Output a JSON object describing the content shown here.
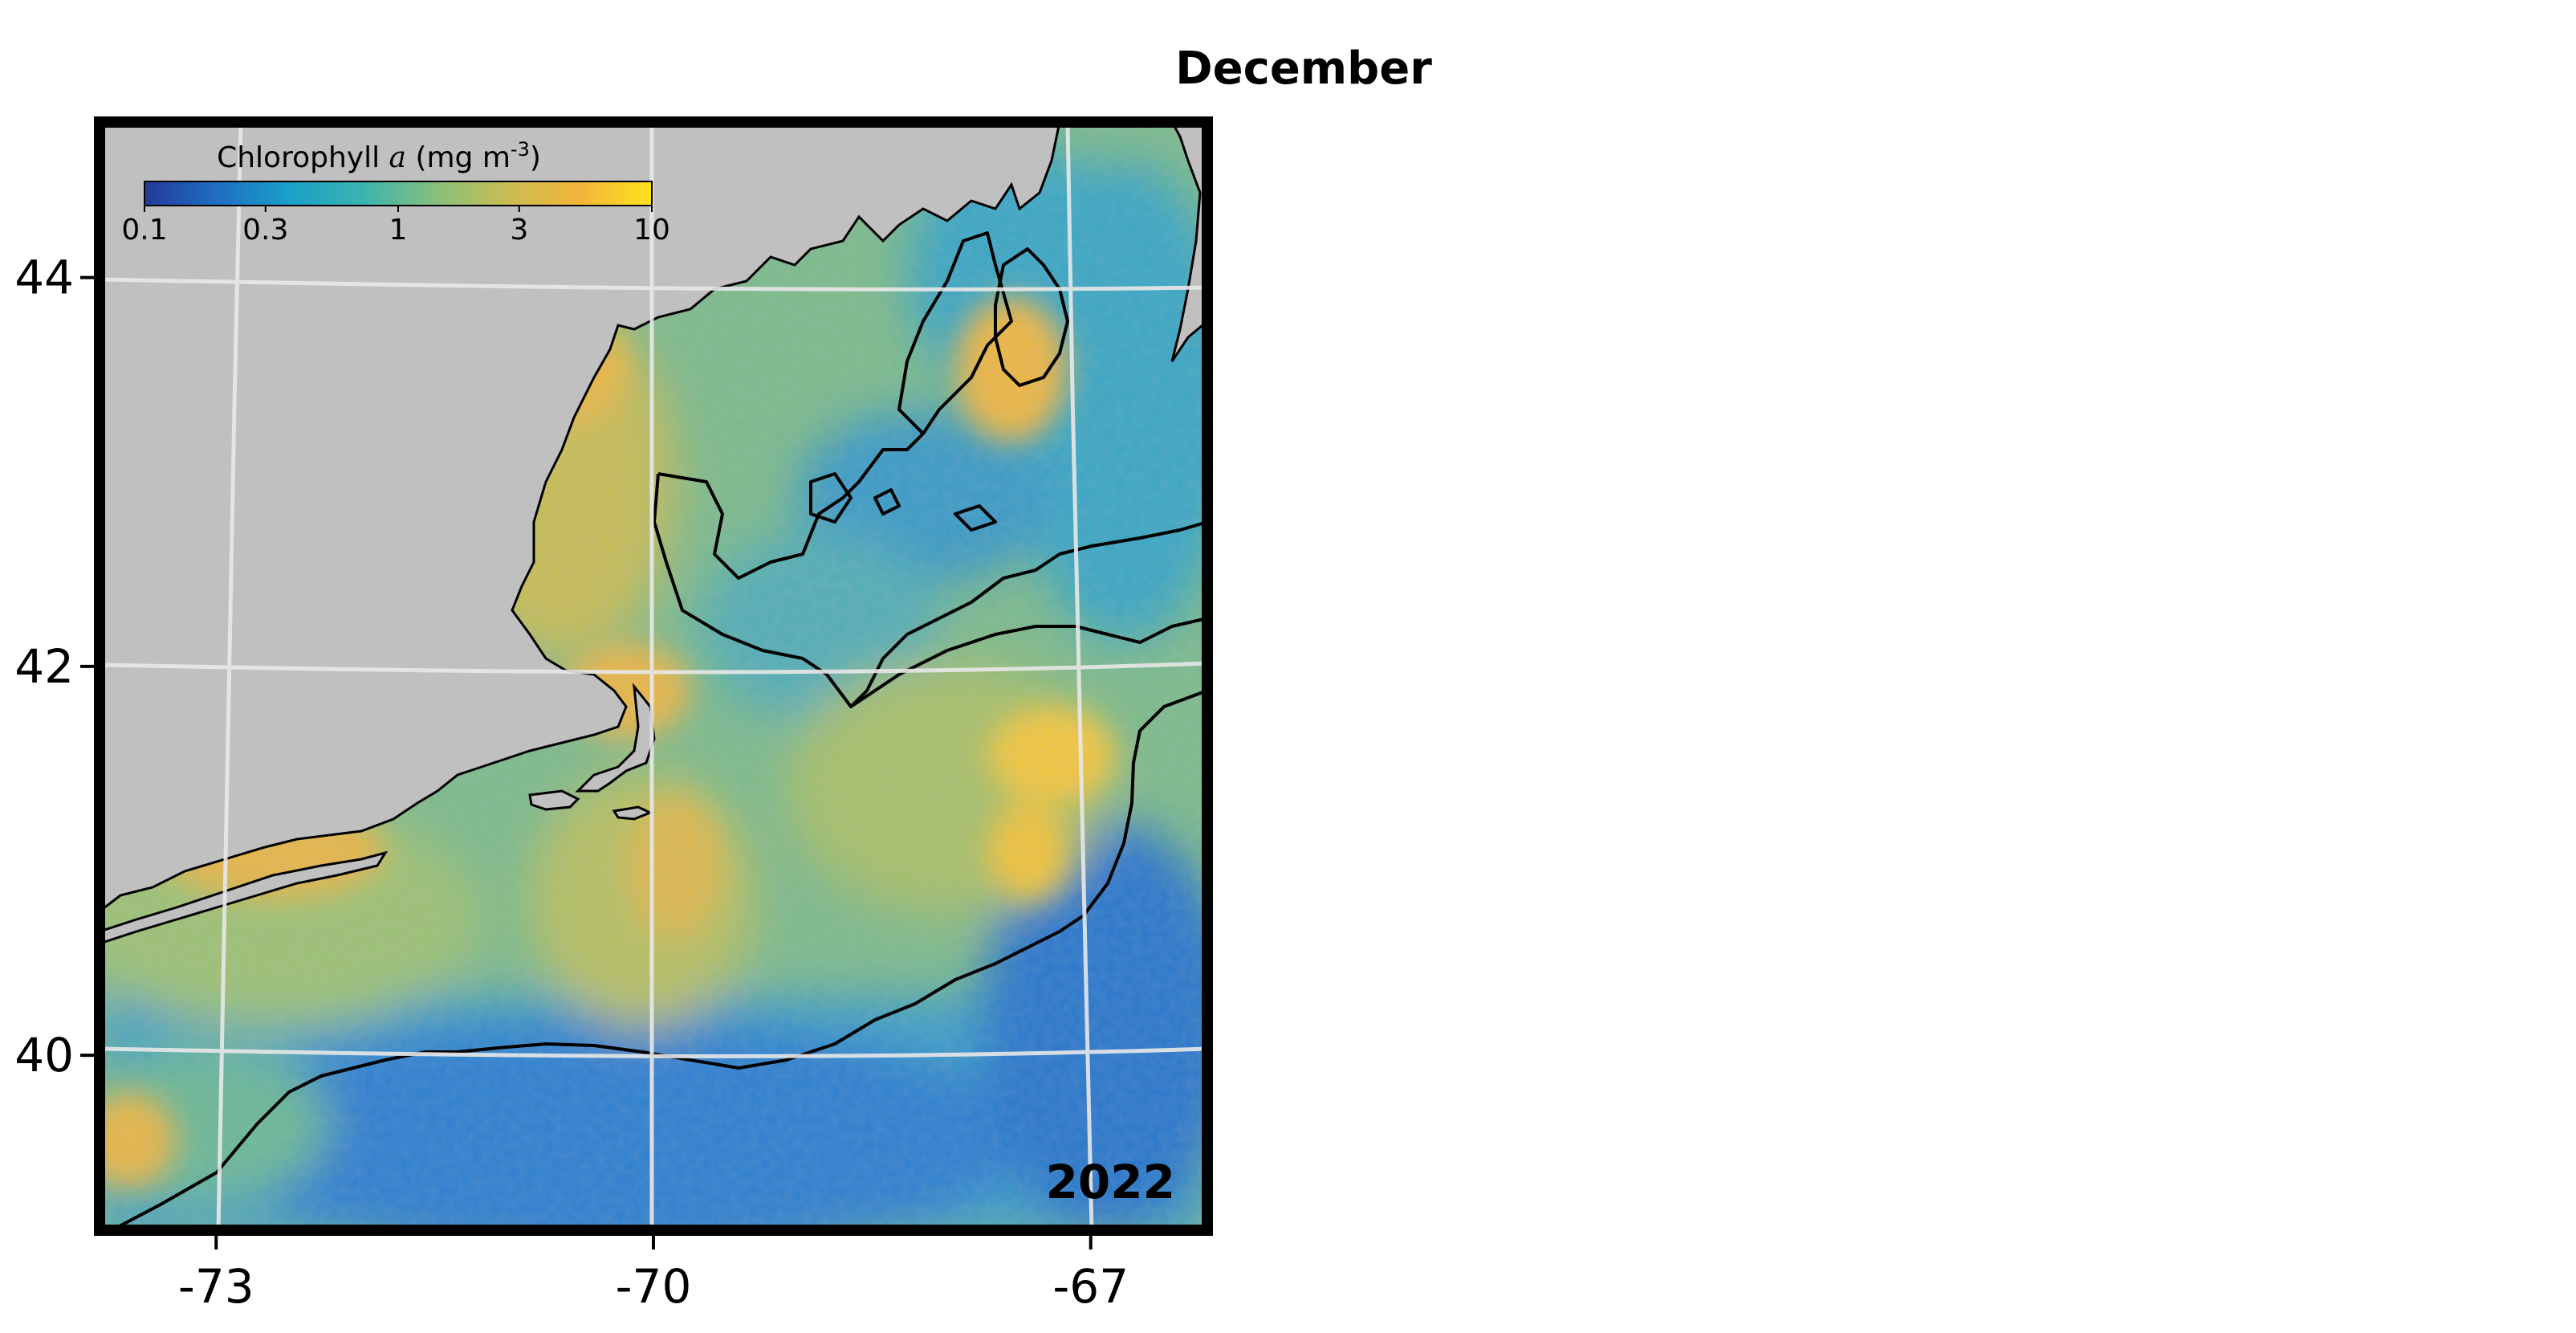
{
  "title": "December",
  "year_label": "2022",
  "colorbar": {
    "title_prefix": "Chlorophyll ",
    "title_var": "a",
    "title_unit_open": " (mg m",
    "title_unit_exp": "-3",
    "title_unit_close": ")",
    "ticks": [
      "0.1",
      "0.3",
      "1",
      "3",
      "10"
    ],
    "scale": "log",
    "range": [
      0.1,
      10
    ],
    "colors": [
      "#233a9a",
      "#1f6fc2",
      "#1aa0c9",
      "#3ab3b0",
      "#86c07c",
      "#c9bd53",
      "#f3b43a",
      "#ffe21c"
    ]
  },
  "axes": {
    "lat_ticks": [
      "44",
      "42",
      "40"
    ],
    "lon_ticks": [
      "-73",
      "-70",
      "-67"
    ],
    "lat_range": [
      39.1,
      44.8
    ],
    "lon_range": [
      -73.8,
      -66.2
    ],
    "grid": "on"
  },
  "colors": {
    "land": "#c0c0c0",
    "frame": "#000000",
    "grid": "#e8e8e8",
    "coast": "#000000"
  }
}
